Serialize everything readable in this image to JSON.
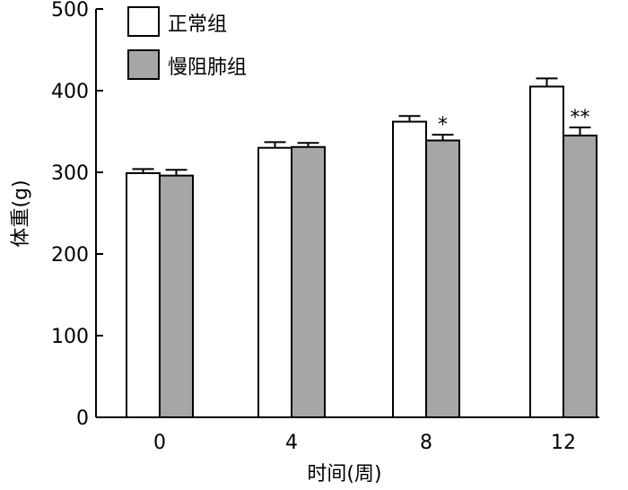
{
  "chart_data": {
    "type": "bar",
    "title": "",
    "xlabel": "时间(周)",
    "ylabel": "体重(g)",
    "ylim": [
      0,
      500
    ],
    "yticks": [
      0,
      100,
      200,
      300,
      400,
      500
    ],
    "categories": [
      "0",
      "4",
      "8",
      "12"
    ],
    "series": [
      {
        "name": "正常组",
        "color": "#ffffff",
        "values": [
          299,
          330,
          362,
          405
        ],
        "errors": [
          5,
          7,
          7,
          10
        ]
      },
      {
        "name": "慢阻肺组",
        "color": "#a6a6a6",
        "values": [
          296,
          331,
          339,
          345
        ],
        "errors": [
          7,
          5,
          7,
          10
        ],
        "significance": [
          "",
          "",
          "*",
          "**"
        ]
      }
    ],
    "legend_position": "top-left",
    "grid": false
  }
}
